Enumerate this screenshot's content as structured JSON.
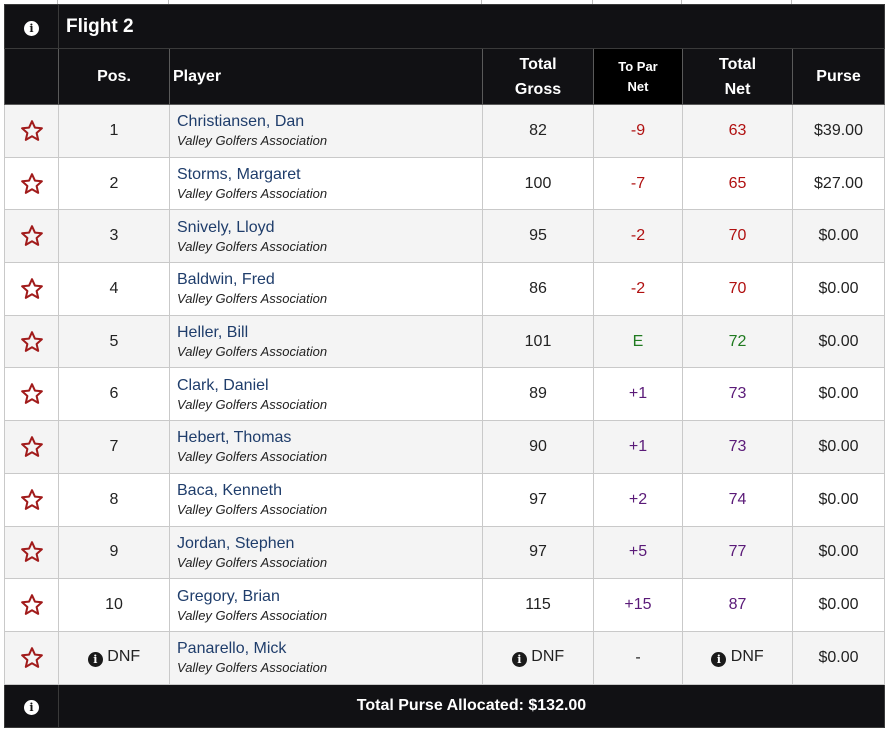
{
  "flight": {
    "title": "Flight 2"
  },
  "columns": {
    "pos": "Pos.",
    "player": "Player",
    "total_gross_1": "Total",
    "total_gross_2": "Gross",
    "to_par_1": "To Par",
    "to_par_2": "Net",
    "total_net_1": "Total",
    "total_net_2": "Net",
    "purse": "Purse"
  },
  "rows": [
    {
      "pos": "1",
      "name": "Christiansen, Dan",
      "club": "Valley Golfers Association",
      "gross": "82",
      "to_par": "-9",
      "net": "63",
      "purse": "$39.00",
      "tone": "neg"
    },
    {
      "pos": "2",
      "name": "Storms, Margaret",
      "club": "Valley Golfers Association",
      "gross": "100",
      "to_par": "-7",
      "net": "65",
      "purse": "$27.00",
      "tone": "neg"
    },
    {
      "pos": "3",
      "name": "Snively, Lloyd",
      "club": "Valley Golfers Association",
      "gross": "95",
      "to_par": "-2",
      "net": "70",
      "purse": "$0.00",
      "tone": "neg"
    },
    {
      "pos": "4",
      "name": "Baldwin, Fred",
      "club": "Valley Golfers Association",
      "gross": "86",
      "to_par": "-2",
      "net": "70",
      "purse": "$0.00",
      "tone": "neg"
    },
    {
      "pos": "5",
      "name": "Heller, Bill",
      "club": "Valley Golfers Association",
      "gross": "101",
      "to_par": "E",
      "net": "72",
      "purse": "$0.00",
      "tone": "even-par"
    },
    {
      "pos": "6",
      "name": "Clark, Daniel",
      "club": "Valley Golfers Association",
      "gross": "89",
      "to_par": "+1",
      "net": "73",
      "purse": "$0.00",
      "tone": "pos"
    },
    {
      "pos": "7",
      "name": "Hebert, Thomas",
      "club": "Valley Golfers Association",
      "gross": "90",
      "to_par": "+1",
      "net": "73",
      "purse": "$0.00",
      "tone": "pos"
    },
    {
      "pos": "8",
      "name": "Baca, Kenneth",
      "club": "Valley Golfers Association",
      "gross": "97",
      "to_par": "+2",
      "net": "74",
      "purse": "$0.00",
      "tone": "pos"
    },
    {
      "pos": "9",
      "name": "Jordan, Stephen",
      "club": "Valley Golfers Association",
      "gross": "97",
      "to_par": "+5",
      "net": "77",
      "purse": "$0.00",
      "tone": "pos"
    },
    {
      "pos": "10",
      "name": "Gregory, Brian",
      "club": "Valley Golfers Association",
      "gross": "115",
      "to_par": "+15",
      "net": "87",
      "purse": "$0.00",
      "tone": "pos"
    }
  ],
  "dnf_row": {
    "pos": "DNF",
    "name": "Panarello, Mick",
    "club": "Valley Golfers Association",
    "gross": "DNF",
    "to_par": "-",
    "net": "DNF",
    "purse": "$0.00"
  },
  "footer": {
    "total_purse": "Total Purse Allocated: $132.00"
  },
  "icons": {
    "favorite": "star-outline-icon",
    "info": "info-circle-icon"
  },
  "colors": {
    "header_bg": "#111114",
    "star": "#a11b1b",
    "name_link": "#1f3d6b",
    "under_par": "#b01010",
    "even": "#1f7a1f",
    "over_par": "#5a1a78"
  }
}
